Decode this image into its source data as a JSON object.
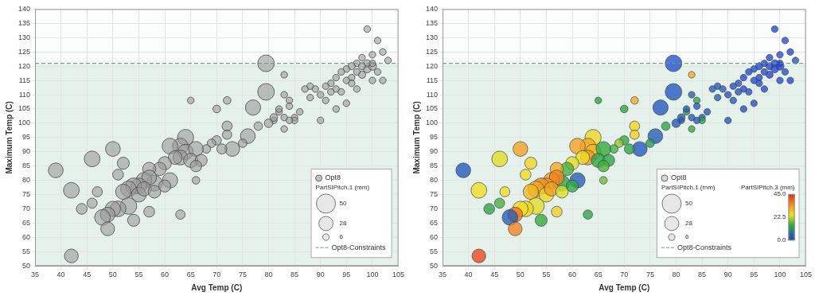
{
  "chart_data": [
    {
      "type": "bubble",
      "x_label": "Avg Temp (C)",
      "y_label": "Maximum Temp (C)",
      "xlim": [
        35,
        105
      ],
      "xticks": [
        35,
        40,
        45,
        50,
        55,
        60,
        65,
        70,
        75,
        80,
        85,
        90,
        95,
        100,
        105
      ],
      "ylim": [
        50,
        140
      ],
      "yticks": [
        50,
        55,
        60,
        65,
        70,
        75,
        80,
        85,
        90,
        95,
        100,
        105,
        110,
        115,
        120,
        125,
        130,
        135,
        140
      ],
      "grid": true,
      "legend": "lower right",
      "series": [
        {
          "name": "Opt8",
          "color": "#9a9a9a",
          "x": [
            99,
            101,
            102,
            100,
            98,
            103,
            97,
            96,
            95,
            94,
            99,
            100,
            101,
            98,
            97,
            96,
            95,
            93,
            92,
            91,
            93,
            94,
            92,
            90,
            91,
            89,
            88,
            87,
            90,
            93,
            95,
            96,
            97,
            100,
            102,
            99,
            98,
            100,
            84,
            84,
            83,
            82,
            83,
            85,
            85,
            84,
            83,
            82,
            88,
            86,
            83,
            81,
            79.5,
            79.5,
            77,
            76,
            73,
            72,
            72,
            70,
            71,
            69,
            68,
            75,
            78,
            80,
            81,
            70,
            72,
            65,
            63,
            66,
            64,
            63,
            61,
            64,
            63,
            66,
            65,
            62,
            60,
            61,
            59,
            58,
            57,
            67,
            66,
            56,
            57,
            55,
            54,
            53,
            52,
            55,
            56,
            53,
            51,
            50,
            49,
            48,
            49,
            50,
            52,
            51,
            57,
            54,
            58,
            60,
            39,
            42,
            46,
            42,
            44,
            46,
            47
          ],
          "y": [
            133,
            129,
            125,
            124,
            123,
            122,
            121,
            120,
            119,
            118,
            119,
            120,
            118,
            117,
            118,
            116,
            115,
            116,
            114,
            113,
            112,
            111,
            111,
            110,
            108,
            112,
            113,
            112,
            101,
            105,
            107,
            114,
            112,
            115,
            115,
            121,
            120,
            121,
            108,
            106,
            110,
            104,
            102,
            102,
            101,
            101,
            117,
            105,
            109,
            104,
            98,
            101,
            121,
            111,
            105.5,
            95.5,
            91,
            99,
            96,
            94,
            91,
            93,
            91,
            93,
            99,
            100,
            102,
            105,
            108,
            108,
            68,
            80,
            95,
            92,
            92,
            90,
            88,
            91,
            87,
            88,
            86,
            80,
            84,
            79,
            84,
            87,
            85,
            80,
            81,
            78,
            78,
            77,
            76,
            75,
            77,
            71,
            70,
            70,
            68,
            67,
            63,
            91,
            86,
            82,
            69,
            66,
            76,
            78,
            83.5,
            76.5,
            87.5,
            53.5,
            70,
            72,
            76
          ],
          "sizes": [
            6,
            6,
            6,
            6,
            6,
            6,
            6,
            7,
            6,
            6,
            8,
            9,
            6,
            7,
            6,
            6,
            6,
            6,
            6,
            6,
            6,
            6,
            6,
            6,
            6,
            6,
            6,
            6,
            6,
            6,
            6,
            6,
            6,
            6,
            6,
            7,
            7,
            6,
            6,
            6,
            6,
            6,
            6,
            6,
            6,
            6,
            6,
            6,
            6,
            6,
            6,
            6,
            38,
            38,
            32,
            30,
            30,
            14,
            12,
            12,
            14,
            10,
            10,
            10,
            10,
            10,
            8,
            8,
            8,
            6,
            12,
            8,
            36,
            34,
            34,
            32,
            30,
            30,
            28,
            26,
            24,
            32,
            24,
            34,
            24,
            20,
            18,
            34,
            30,
            34,
            36,
            34,
            32,
            30,
            28,
            38,
            34,
            32,
            30,
            34,
            26,
            30,
            20,
            16,
            16,
            20,
            22,
            20,
            30,
            34,
            34,
            26,
            16,
            14,
            14
          ]
        }
      ],
      "size_legend": {
        "title": "PartSIPitch.1 (mm)",
        "values": [
          50,
          28,
          6
        ]
      },
      "constraint": {
        "label": "Opt8-Constraints",
        "y": 121
      }
    },
    {
      "type": "bubble",
      "x_label": "Avg Temp (C)",
      "y_label": "Maximum Temp (C)",
      "xlim": [
        35,
        105
      ],
      "xticks": [
        35,
        40,
        45,
        50,
        55,
        60,
        65,
        70,
        75,
        80,
        85,
        90,
        95,
        100,
        105
      ],
      "ylim": [
        50,
        140
      ],
      "yticks": [
        50,
        55,
        60,
        65,
        70,
        75,
        80,
        85,
        90,
        95,
        100,
        105,
        110,
        115,
        120,
        125,
        130,
        135,
        140
      ],
      "grid": true,
      "legend": "lower right",
      "series": [
        {
          "name": "Opt8",
          "x": [
            99,
            101,
            102,
            100,
            98,
            103,
            97,
            96,
            95,
            94,
            99,
            100,
            101,
            98,
            97,
            96,
            95,
            93,
            92,
            91,
            93,
            94,
            92,
            90,
            91,
            89,
            88,
            87,
            90,
            93,
            95,
            96,
            97,
            100,
            102,
            99,
            98,
            100,
            84,
            84,
            83,
            82,
            83,
            85,
            85,
            84,
            83,
            82,
            88,
            86,
            83,
            81,
            79.5,
            79.5,
            77,
            76,
            73,
            72,
            72,
            70,
            71,
            69,
            68,
            75,
            78,
            80,
            81,
            70,
            72,
            65,
            63,
            66,
            64,
            63,
            61,
            64,
            63,
            66,
            65,
            62,
            60,
            61,
            59,
            58,
            57,
            67,
            66,
            56,
            57,
            55,
            54,
            53,
            52,
            55,
            56,
            53,
            51,
            50,
            49,
            48,
            49,
            50,
            52,
            51,
            57,
            54,
            58,
            60,
            39,
            42,
            46,
            42,
            44,
            46,
            47
          ],
          "y": [
            133,
            129,
            125,
            124,
            123,
            122,
            121,
            120,
            119,
            118,
            119,
            120,
            118,
            117,
            118,
            116,
            115,
            116,
            114,
            113,
            112,
            111,
            111,
            110,
            108,
            112,
            113,
            112,
            101,
            105,
            107,
            114,
            112,
            115,
            115,
            121,
            120,
            121,
            108,
            106,
            110,
            104,
            102,
            102,
            101,
            101,
            117,
            105,
            109,
            104,
            98,
            101,
            121,
            111,
            105.5,
            95.5,
            91,
            99,
            96,
            94,
            91,
            93,
            91,
            93,
            99,
            100,
            102,
            105,
            108,
            108,
            68,
            80,
            95,
            92,
            92,
            90,
            88,
            91,
            87,
            88,
            86,
            80,
            84,
            79,
            84,
            87,
            85,
            80,
            81,
            78,
            78,
            77,
            76,
            75,
            77,
            71,
            70,
            70,
            68,
            67,
            63,
            91,
            86,
            82,
            69,
            66,
            76,
            78,
            83.5,
            76.5,
            87.5,
            53.5,
            70,
            72,
            76
          ],
          "sizes": [
            6,
            6,
            6,
            6,
            6,
            6,
            6,
            7,
            6,
            6,
            8,
            9,
            6,
            7,
            6,
            6,
            6,
            6,
            6,
            6,
            6,
            6,
            6,
            6,
            6,
            6,
            6,
            6,
            6,
            6,
            6,
            6,
            6,
            6,
            6,
            7,
            7,
            6,
            6,
            6,
            6,
            6,
            6,
            6,
            6,
            6,
            6,
            6,
            6,
            6,
            6,
            6,
            38,
            38,
            32,
            30,
            30,
            14,
            12,
            12,
            14,
            10,
            10,
            10,
            10,
            10,
            8,
            8,
            8,
            6,
            12,
            8,
            36,
            34,
            34,
            32,
            30,
            30,
            28,
            26,
            24,
            32,
            24,
            34,
            24,
            20,
            18,
            34,
            30,
            34,
            36,
            34,
            32,
            30,
            28,
            38,
            34,
            32,
            30,
            34,
            26,
            30,
            20,
            16,
            16,
            20,
            22,
            20,
            30,
            34,
            34,
            26,
            16,
            14,
            14
          ],
          "color_values": [
            1,
            2,
            1,
            2,
            1,
            3,
            1,
            1,
            2,
            1,
            1,
            0,
            2,
            1,
            2,
            1,
            2,
            1,
            3,
            2,
            1,
            2,
            3,
            2,
            3,
            4,
            3,
            4,
            3,
            2,
            2,
            1,
            1,
            2,
            1,
            1,
            1,
            0,
            14,
            3,
            5,
            12,
            4,
            3,
            14,
            3,
            32,
            4,
            5,
            3,
            15,
            4,
            2,
            3,
            3,
            4,
            3,
            26,
            27,
            15,
            14,
            20,
            16,
            13,
            14,
            3,
            4,
            14,
            32,
            14,
            14,
            18,
            26,
            32,
            33,
            30,
            34,
            15,
            14,
            25,
            24,
            4,
            16,
            14,
            32,
            14,
            16,
            34,
            36,
            33,
            35,
            32,
            30,
            26,
            33,
            24,
            26,
            25,
            38,
            4,
            36,
            33,
            26,
            25,
            27,
            15,
            24,
            15,
            3,
            25,
            24,
            42,
            14,
            16,
            25
          ]
        }
      ],
      "size_legend": {
        "title": "PartSIPitch.1 (mm)",
        "values": [
          50,
          28,
          6
        ]
      },
      "colorbar": {
        "title": "PartSIPitch.3 (mm)",
        "range": [
          0,
          45
        ],
        "ticks": [
          {
            "value": 45,
            "label": "45.0"
          },
          {
            "value": 22.5,
            "label": "22.5"
          },
          {
            "value": 0,
            "label": "0.0"
          }
        ]
      },
      "constraint": {
        "label": "Opt8-Constraints",
        "y": 121
      }
    }
  ]
}
